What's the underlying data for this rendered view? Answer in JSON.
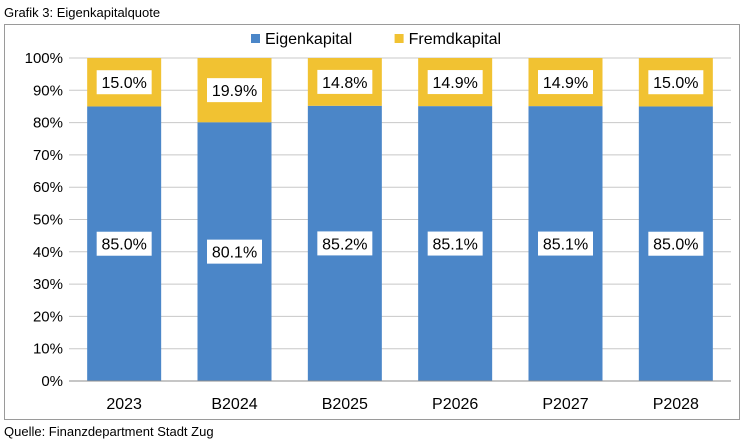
{
  "caption_title": "Grafik 3: Eigenkapitalquote",
  "caption_source": "Quelle: Finanzdepartment Stadt Zug",
  "colors": {
    "eigenkapital": "#4b86c8",
    "fremdkapital": "#f1c232",
    "grid": "#c8c8c8",
    "label_bg": "#ffffff"
  },
  "chart_data": {
    "type": "bar",
    "stacked": true,
    "categories": [
      "2023",
      "B2024",
      "B2025",
      "P2026",
      "P2027",
      "P2028"
    ],
    "series": [
      {
        "name": "Eigenkapital",
        "values": [
          85.0,
          80.1,
          85.2,
          85.1,
          85.1,
          85.0
        ],
        "labels": [
          "85.0%",
          "80.1%",
          "85.2%",
          "85.1%",
          "85.1%",
          "85.0%"
        ]
      },
      {
        "name": "Fremdkapital",
        "values": [
          15.0,
          19.9,
          14.8,
          14.9,
          14.9,
          15.0
        ],
        "labels": [
          "15.0%",
          "19.9%",
          "14.8%",
          "14.9%",
          "14.9%",
          "15.0%"
        ]
      }
    ],
    "yticks": [
      "0%",
      "10%",
      "20%",
      "30%",
      "40%",
      "50%",
      "60%",
      "70%",
      "80%",
      "90%",
      "100%"
    ],
    "ylim": [
      0,
      100
    ],
    "grid": true,
    "legend": "top-center"
  }
}
